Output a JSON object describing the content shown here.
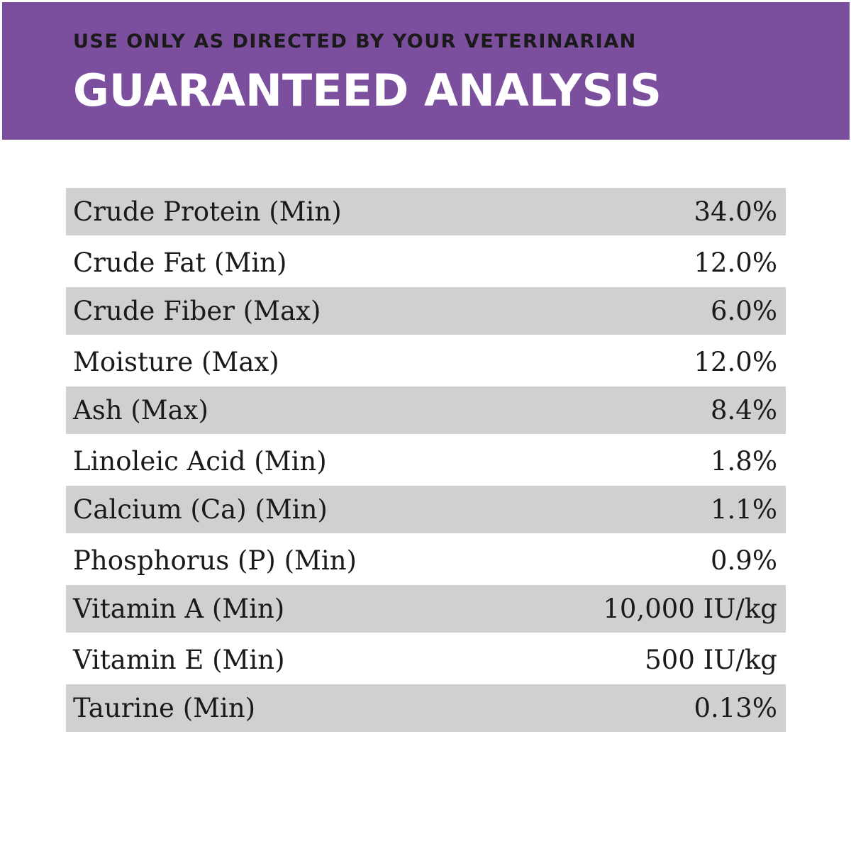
{
  "banner": {
    "subtitle": "USE ONLY AS DIRECTED BY YOUR VETERINARIAN",
    "title": "GUARANTEED ANALYSIS",
    "color": "#7b4f9e"
  },
  "analysis": {
    "rows": [
      {
        "label": "Crude Protein (Min)",
        "value": "34.0%"
      },
      {
        "label": "Crude Fat (Min)",
        "value": "12.0%"
      },
      {
        "label": "Crude Fiber (Max)",
        "value": "6.0%"
      },
      {
        "label": "Moisture (Max)",
        "value": "12.0%"
      },
      {
        "label": "Ash (Max)",
        "value": "8.4%"
      },
      {
        "label": "Linoleic Acid (Min)",
        "value": "1.8%"
      },
      {
        "label": "Calcium (Ca) (Min)",
        "value": "1.1%"
      },
      {
        "label": "Phosphorus (P) (Min)",
        "value": "0.9%"
      },
      {
        "label": "Vitamin A (Min)",
        "value": "10,000 IU/kg"
      },
      {
        "label": "Vitamin E (Min)",
        "value": "500 IU/kg"
      },
      {
        "label": "Taurine (Min)",
        "value": "0.13%"
      }
    ]
  }
}
